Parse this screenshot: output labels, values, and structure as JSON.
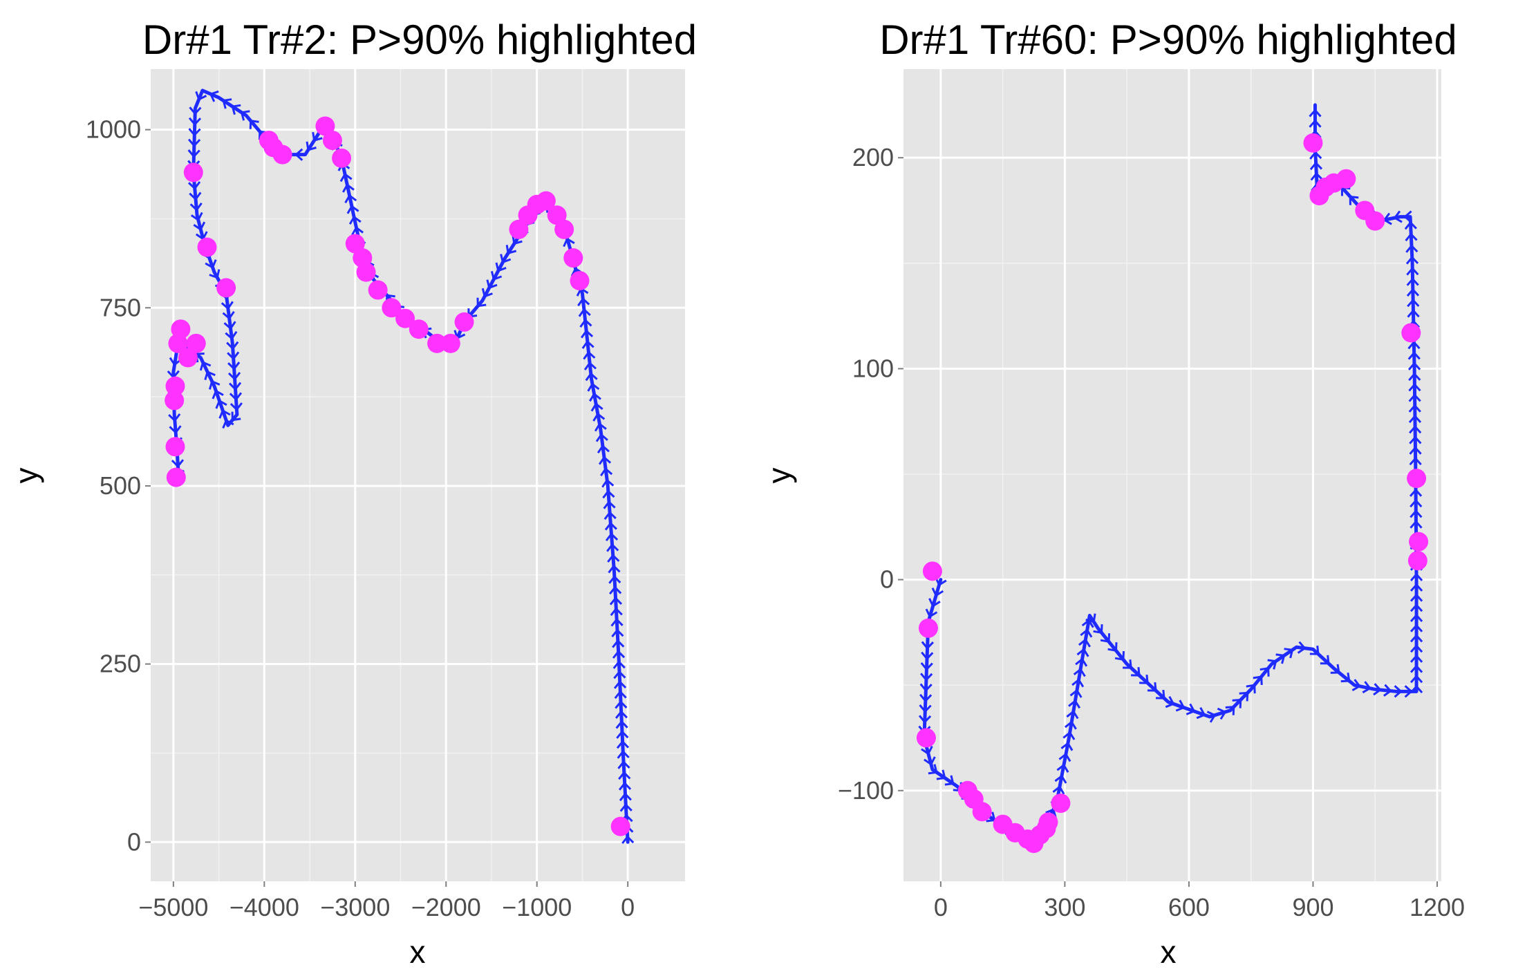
{
  "colors": {
    "panel_background": "#e5e5e5",
    "grid_major": "#ffffff",
    "grid_minor": "#f2f2f2",
    "path_arrows": "#1f2bff",
    "highlight_points": "#ff33ff",
    "tick_text": "#4d4d4d",
    "tick_mark": "#7f7f7f"
  },
  "chart_data": [
    {
      "type": "scatter",
      "title": "Dr#1 Tr#2: P>90% highlighted",
      "xlabel": "x",
      "ylabel": "y",
      "xlim": [
        -5250,
        630
      ],
      "ylim": [
        -55,
        1085
      ],
      "x_ticks": [
        -5000,
        -4000,
        -3000,
        -2000,
        -1000,
        0
      ],
      "x_tick_labels": [
        "−5000",
        "−4000",
        "−3000",
        "−2000",
        "−1000",
        "0"
      ],
      "y_ticks": [
        0,
        250,
        500,
        750,
        1000
      ],
      "y_tick_labels": [
        "0",
        "250",
        "500",
        "750",
        "1000"
      ],
      "grid": true,
      "series": [
        {
          "kind": "arrow-path",
          "points": [
            [
              0,
              0
            ],
            [
              -50,
              120
            ],
            [
              -100,
              260
            ],
            [
              -150,
              380
            ],
            [
              -220,
              500
            ],
            [
              -300,
              580
            ],
            [
              -400,
              650
            ],
            [
              -500,
              770
            ],
            [
              -650,
              840
            ],
            [
              -750,
              880
            ],
            [
              -950,
              900
            ],
            [
              -1150,
              860
            ],
            [
              -1350,
              820
            ],
            [
              -1600,
              760
            ],
            [
              -1800,
              730
            ],
            [
              -1900,
              700
            ],
            [
              -2050,
              700
            ],
            [
              -2200,
              715
            ],
            [
              -2400,
              730
            ],
            [
              -2600,
              760
            ],
            [
              -2800,
              790
            ],
            [
              -2950,
              840
            ],
            [
              -3050,
              900
            ],
            [
              -3150,
              960
            ],
            [
              -3250,
              990
            ],
            [
              -3350,
              1005
            ],
            [
              -3550,
              965
            ],
            [
              -3750,
              965
            ],
            [
              -4000,
              990
            ],
            [
              -4200,
              1020
            ],
            [
              -4500,
              1045
            ],
            [
              -4680,
              1055
            ],
            [
              -4760,
              1030
            ],
            [
              -4780,
              940
            ],
            [
              -4740,
              880
            ],
            [
              -4660,
              840
            ],
            [
              -4550,
              800
            ],
            [
              -4420,
              770
            ],
            [
              -4350,
              700
            ],
            [
              -4300,
              600
            ],
            [
              -4400,
              585
            ],
            [
              -4550,
              640
            ],
            [
              -4700,
              680
            ],
            [
              -4800,
              690
            ],
            [
              -4950,
              700
            ],
            [
              -5000,
              660
            ],
            [
              -4990,
              600
            ],
            [
              -4960,
              550
            ],
            [
              -4940,
              505
            ]
          ]
        },
        {
          "kind": "points",
          "points": [
            [
              -80,
              22
            ],
            [
              -530,
              788
            ],
            [
              -600,
              820
            ],
            [
              -700,
              860
            ],
            [
              -780,
              880
            ],
            [
              -900,
              900
            ],
            [
              -1000,
              895
            ],
            [
              -1100,
              880
            ],
            [
              -1200,
              860
            ],
            [
              -1800,
              730
            ],
            [
              -1950,
              700
            ],
            [
              -2100,
              700
            ],
            [
              -2300,
              720
            ],
            [
              -2450,
              735
            ],
            [
              -2600,
              750
            ],
            [
              -2750,
              775
            ],
            [
              -2880,
              800
            ],
            [
              -2920,
              820
            ],
            [
              -3000,
              840
            ],
            [
              -3150,
              960
            ],
            [
              -3250,
              985
            ],
            [
              -3330,
              1005
            ],
            [
              -3800,
              965
            ],
            [
              -3900,
              975
            ],
            [
              -3950,
              985
            ],
            [
              -4420,
              778
            ],
            [
              -4630,
              835
            ],
            [
              -4780,
              940
            ],
            [
              -4750,
              700
            ],
            [
              -4840,
              680
            ],
            [
              -4920,
              720
            ],
            [
              -4950,
              700
            ],
            [
              -4980,
              640
            ],
            [
              -4990,
              620
            ],
            [
              -4980,
              555
            ],
            [
              -4970,
              512
            ]
          ]
        }
      ]
    },
    {
      "type": "scatter",
      "title": "Dr#1 Tr#60: P>90% highlighted",
      "xlabel": "x",
      "ylabel": "y",
      "xlim": [
        -90,
        1210
      ],
      "ylim": [
        -143,
        242
      ],
      "x_ticks": [
        0,
        300,
        600,
        900,
        1200
      ],
      "x_tick_labels": [
        "0",
        "300",
        "600",
        "900",
        "1200"
      ],
      "y_ticks": [
        -100,
        0,
        100,
        200
      ],
      "y_tick_labels": [
        "−100",
        "0",
        "100",
        "200"
      ],
      "grid": true,
      "series": [
        {
          "kind": "arrow-path",
          "points": [
            [
              0,
              0
            ],
            [
              -30,
              -20
            ],
            [
              -40,
              -75
            ],
            [
              -20,
              -90
            ],
            [
              40,
              -98
            ],
            [
              100,
              -110
            ],
            [
              160,
              -118
            ],
            [
              220,
              -124
            ],
            [
              250,
              -118
            ],
            [
              280,
              -106
            ],
            [
              310,
              -75
            ],
            [
              340,
              -40
            ],
            [
              360,
              -17
            ],
            [
              380,
              -23
            ],
            [
              450,
              -40
            ],
            [
              550,
              -58
            ],
            [
              650,
              -65
            ],
            [
              700,
              -62
            ],
            [
              750,
              -52
            ],
            [
              800,
              -40
            ],
            [
              860,
              -32
            ],
            [
              900,
              -33
            ],
            [
              950,
              -42
            ],
            [
              1000,
              -50
            ],
            [
              1050,
              -52
            ],
            [
              1100,
              -53
            ],
            [
              1150,
              -53
            ],
            [
              1150,
              0
            ],
            [
              1148,
              50
            ],
            [
              1145,
              100
            ],
            [
              1140,
              150
            ],
            [
              1135,
              172
            ],
            [
              1110,
              172
            ],
            [
              1060,
              170
            ],
            [
              1020,
              175
            ],
            [
              960,
              188
            ],
            [
              910,
              185
            ],
            [
              905,
              205
            ],
            [
              905,
              225
            ]
          ]
        },
        {
          "kind": "points",
          "points": [
            [
              -20,
              4
            ],
            [
              -30,
              -23
            ],
            [
              -35,
              -75
            ],
            [
              65,
              -100
            ],
            [
              80,
              -104
            ],
            [
              100,
              -110
            ],
            [
              150,
              -116
            ],
            [
              180,
              -120
            ],
            [
              210,
              -123
            ],
            [
              225,
              -125
            ],
            [
              240,
              -121
            ],
            [
              255,
              -118
            ],
            [
              260,
              -115
            ],
            [
              290,
              -106
            ],
            [
              1137,
              117
            ],
            [
              1150,
              48
            ],
            [
              1155,
              18
            ],
            [
              1153,
              9
            ],
            [
              900,
              207
            ],
            [
              915,
              182
            ],
            [
              930,
              186
            ],
            [
              950,
              188
            ],
            [
              980,
              190
            ],
            [
              1025,
              175
            ],
            [
              1050,
              170
            ]
          ]
        }
      ]
    }
  ]
}
